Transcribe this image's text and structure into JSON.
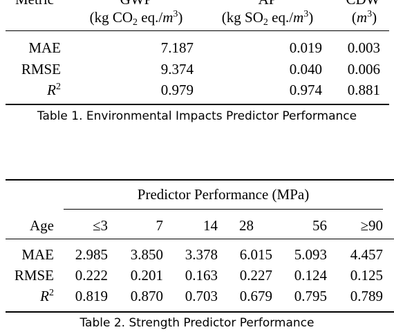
{
  "table1": {
    "header_row1": [
      "Metric",
      "GWP",
      "AP",
      "CDW"
    ],
    "header_row2": {
      "gwp_unit_pre": "(kg CO",
      "gwp_unit_sub": "2",
      "gwp_unit_mid": " eq./",
      "gwp_unit_m": "m",
      "gwp_unit_sup": "3",
      "gwp_unit_end": ")",
      "ap_unit_pre": "(kg SO",
      "ap_unit_sub": "2",
      "ap_unit_mid": " eq./",
      "ap_unit_m": "m",
      "ap_unit_sup": "3",
      "ap_unit_end": ")",
      "cdw_unit_pre": "(",
      "cdw_unit_m": "m",
      "cdw_unit_sup": "3",
      "cdw_unit_end": ")"
    },
    "rows": [
      {
        "metric": "MAE",
        "gwp": "7.187",
        "ap": "0.019",
        "cdw": "0.003"
      },
      {
        "metric": "RMSE",
        "gwp": "9.374",
        "ap": "0.040",
        "cdw": "0.006"
      }
    ],
    "r2_row": {
      "metric_base": "R",
      "metric_sup": "2",
      "gwp": "0.979",
      "ap": "0.974",
      "cdw": "0.881"
    },
    "caption": "Table 1.  Environmental Impacts Predictor Performance"
  },
  "table2": {
    "group_header": "Predictor Performance (MPa)",
    "col_header_label": "Age",
    "columns": [
      "≤3",
      "7",
      "14",
      "28",
      "56",
      "≥90"
    ],
    "rows": [
      {
        "label": "MAE",
        "values": [
          "2.985",
          "3.850",
          "3.378",
          "6.015",
          "5.093",
          "4.457"
        ]
      },
      {
        "label": "RMSE",
        "values": [
          "0.222",
          "0.201",
          "0.163",
          "0.227",
          "0.124",
          "0.125"
        ]
      }
    ],
    "r2_row": {
      "label_base": "R",
      "label_sup": "2",
      "values": [
        "0.819",
        "0.870",
        "0.703",
        "0.679",
        "0.795",
        "0.789"
      ]
    },
    "caption": "Table 2.  Strength Predictor Performance"
  }
}
